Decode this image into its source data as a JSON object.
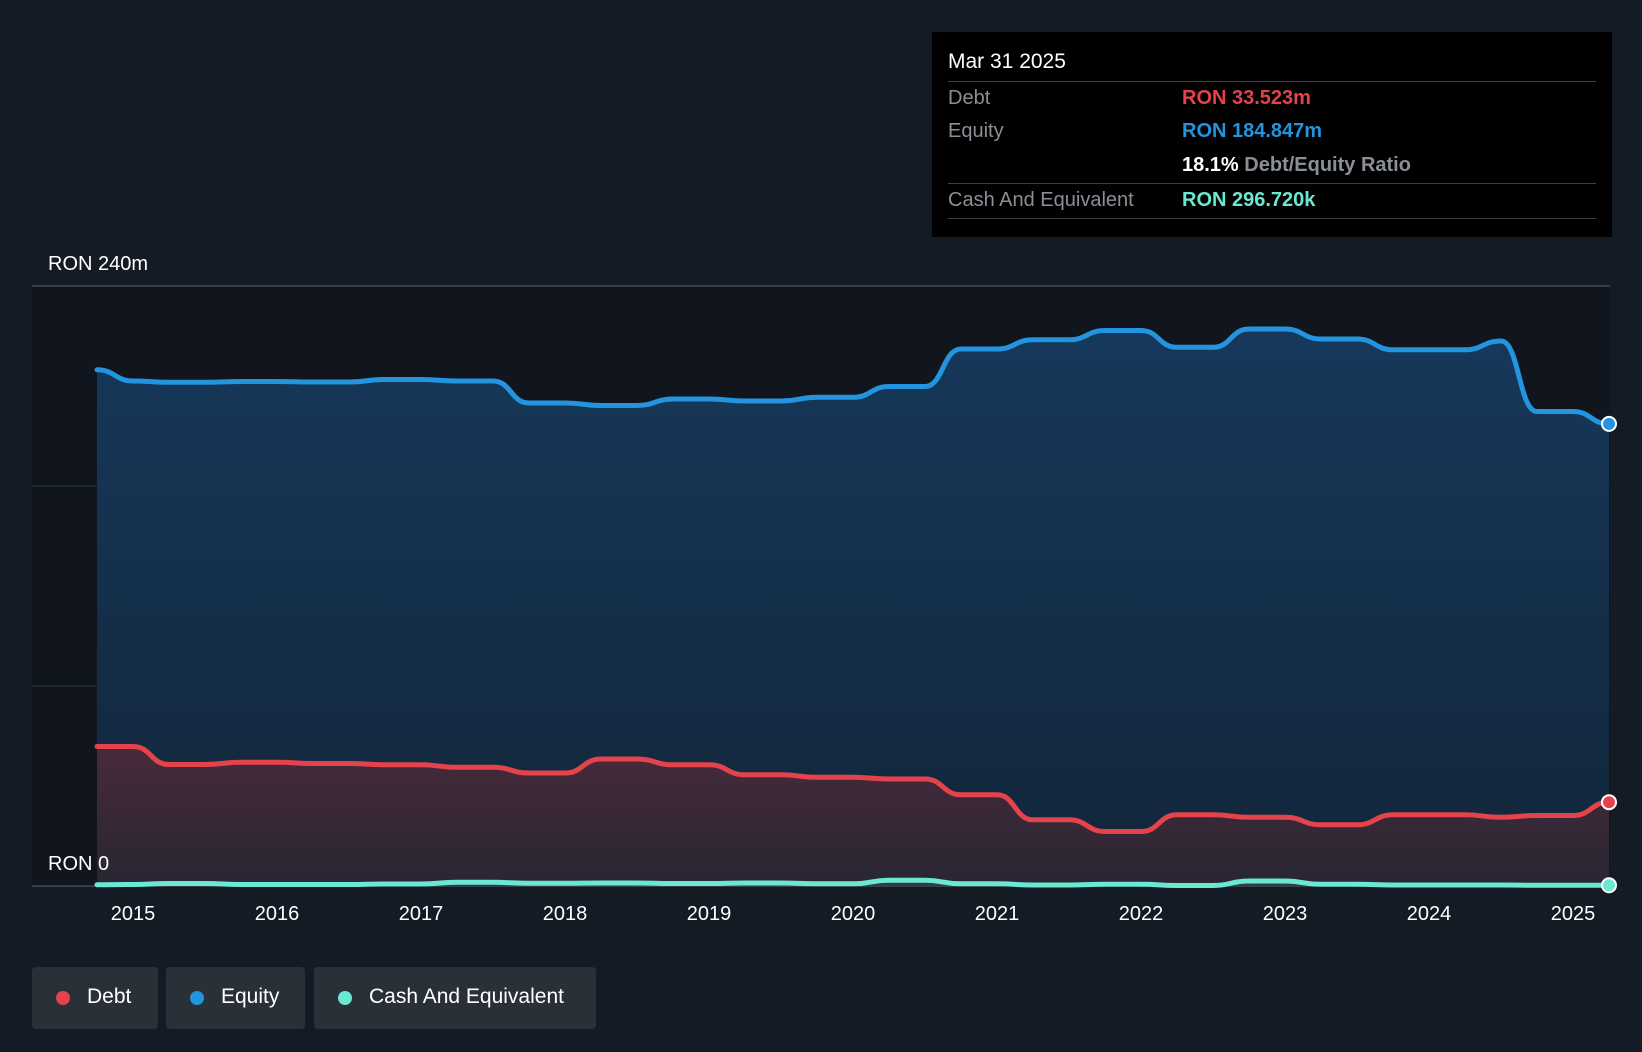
{
  "colors": {
    "background": "#151b24",
    "debt": "#e5434c",
    "equity": "#2394df",
    "cash": "#6ae8d4"
  },
  "tooltip": {
    "date": "Mar 31 2025",
    "debt_label": "Debt",
    "debt_value": "RON 33.523m",
    "equity_label": "Equity",
    "equity_value": "RON 184.847m",
    "ratio_value": "18.1%",
    "ratio_label": "Debt/Equity Ratio",
    "cash_label": "Cash And Equivalent",
    "cash_value": "RON 296.720k"
  },
  "legend": {
    "debt": "Debt",
    "equity": "Equity",
    "cash": "Cash And Equivalent"
  },
  "chart_data": {
    "type": "area",
    "title": "",
    "xlabel": "",
    "ylabel": "",
    "y_top_label": "RON 240m",
    "y_bottom_label": "RON 0",
    "ylim": [
      0,
      240
    ],
    "xlim": [
      2014.4,
      2025.25
    ],
    "x_ticks": [
      "2015",
      "2016",
      "2017",
      "2018",
      "2019",
      "2020",
      "2021",
      "2022",
      "2023",
      "2024",
      "2025"
    ],
    "grid": true,
    "legend_position": "bottom-left",
    "series": [
      {
        "name": "Equity",
        "x": [
          2014.75,
          2015.0,
          2015.25,
          2015.5,
          2015.75,
          2016.0,
          2016.25,
          2016.5,
          2016.75,
          2017.0,
          2017.25,
          2017.5,
          2017.75,
          2018.0,
          2018.25,
          2018.5,
          2018.75,
          2019.0,
          2019.25,
          2019.5,
          2019.75,
          2020.0,
          2020.25,
          2020.5,
          2020.75,
          2021.0,
          2021.25,
          2021.5,
          2021.75,
          2022.0,
          2022.25,
          2022.5,
          2022.75,
          2023.0,
          2023.25,
          2023.5,
          2023.75,
          2024.0,
          2024.25,
          2024.5,
          2024.75,
          2025.0,
          2025.25
        ],
        "values": [
          206.5,
          202.0,
          201.5,
          201.5,
          201.8,
          201.8,
          201.6,
          201.6,
          202.6,
          202.6,
          202.0,
          202.0,
          193.2,
          193.2,
          192.2,
          192.2,
          194.8,
          194.8,
          194.0,
          194.0,
          195.5,
          195.5,
          199.8,
          199.8,
          214.8,
          214.8,
          218.5,
          218.5,
          222.2,
          222.2,
          215.5,
          215.5,
          222.8,
          222.8,
          218.8,
          218.8,
          214.5,
          214.5,
          214.5,
          218.0,
          189.8,
          189.8,
          184.847
        ]
      },
      {
        "name": "Debt",
        "x": [
          2014.75,
          2015.0,
          2015.25,
          2015.5,
          2015.75,
          2016.0,
          2016.25,
          2016.5,
          2016.75,
          2017.0,
          2017.25,
          2017.5,
          2017.75,
          2018.0,
          2018.25,
          2018.5,
          2018.75,
          2019.0,
          2019.25,
          2019.5,
          2019.75,
          2020.0,
          2020.25,
          2020.5,
          2020.75,
          2021.0,
          2021.25,
          2021.5,
          2021.75,
          2022.0,
          2022.25,
          2022.5,
          2022.75,
          2023.0,
          2023.25,
          2023.5,
          2023.75,
          2024.0,
          2024.25,
          2024.5,
          2024.75,
          2025.0,
          2025.25
        ],
        "values": [
          55.8,
          55.8,
          48.6,
          48.6,
          49.5,
          49.5,
          49.0,
          49.0,
          48.5,
          48.5,
          47.5,
          47.5,
          45.2,
          45.2,
          50.8,
          50.8,
          48.5,
          48.5,
          44.5,
          44.5,
          43.5,
          43.5,
          42.8,
          42.8,
          36.5,
          36.5,
          26.5,
          26.5,
          21.8,
          21.8,
          28.5,
          28.5,
          27.5,
          27.5,
          24.5,
          24.5,
          28.5,
          28.5,
          28.5,
          27.5,
          28.2,
          28.2,
          33.523
        ]
      },
      {
        "name": "Cash And Equivalent",
        "x": [
          2014.75,
          2015.0,
          2015.25,
          2015.5,
          2015.75,
          2016.0,
          2016.25,
          2016.5,
          2016.75,
          2017.0,
          2017.25,
          2017.5,
          2017.75,
          2018.0,
          2018.25,
          2018.5,
          2018.75,
          2019.0,
          2019.25,
          2019.5,
          2019.75,
          2020.0,
          2020.25,
          2020.5,
          2020.75,
          2021.0,
          2021.25,
          2021.5,
          2021.75,
          2022.0,
          2022.25,
          2022.5,
          2022.75,
          2023.0,
          2023.25,
          2023.5,
          2023.75,
          2024.0,
          2024.25,
          2024.5,
          2024.75,
          2025.0,
          2025.25
        ],
        "values": [
          0.5,
          0.6,
          1.0,
          1.0,
          0.6,
          0.6,
          0.6,
          0.6,
          0.8,
          0.8,
          1.5,
          1.5,
          1.1,
          1.1,
          1.2,
          1.2,
          1.0,
          1.0,
          1.2,
          1.2,
          0.9,
          0.9,
          2.3,
          2.3,
          0.9,
          0.9,
          0.4,
          0.4,
          0.7,
          0.7,
          0.2,
          0.2,
          2.0,
          2.0,
          0.7,
          0.7,
          0.4,
          0.4,
          0.4,
          0.4,
          0.3,
          0.3,
          0.2967
        ]
      }
    ]
  }
}
